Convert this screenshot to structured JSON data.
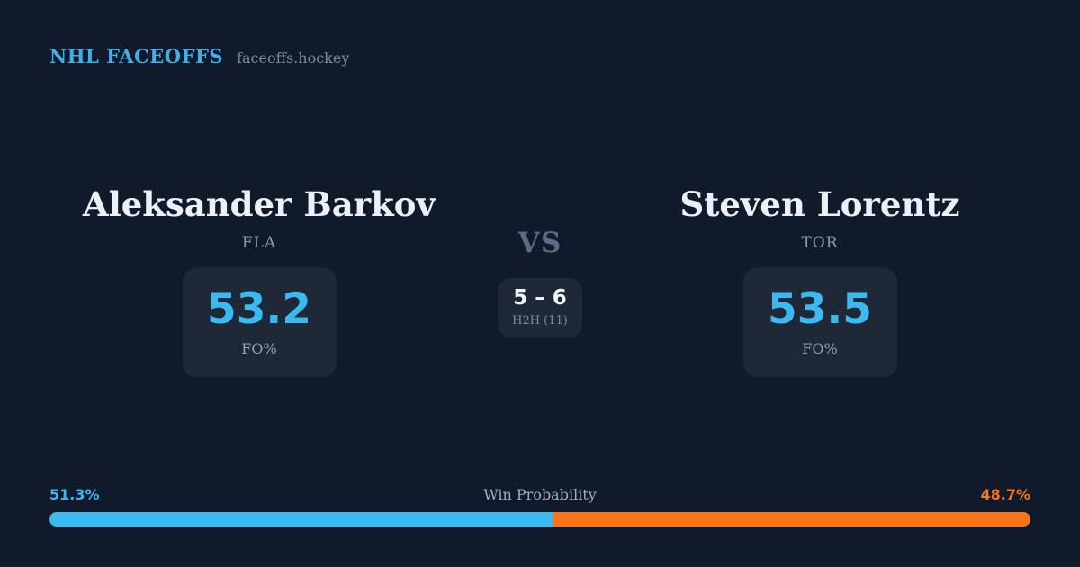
{
  "header": {
    "brand": "NHL FACEOFFS",
    "site": "faceoffs.hockey"
  },
  "matchup": {
    "vs_label": "VS",
    "h2h": {
      "score": "5 – 6",
      "label": "H2H (11)"
    },
    "players": [
      {
        "name": "Aleksander Barkov",
        "team": "FLA",
        "stat_value": "53.2",
        "stat_label": "FO%"
      },
      {
        "name": "Steven Lorentz",
        "team": "TOR",
        "stat_value": "53.5",
        "stat_label": "FO%"
      }
    ]
  },
  "win_probability": {
    "title": "Win Probability",
    "left_pct": "51.3%",
    "right_pct": "48.7%",
    "left_value": 51.3,
    "right_value": 48.7
  },
  "colors": {
    "background": "#111a2b",
    "card": "#1e2837",
    "blue": "#3bbaf2",
    "orange": "#f97516",
    "header_blue": "#3fb0e8"
  }
}
